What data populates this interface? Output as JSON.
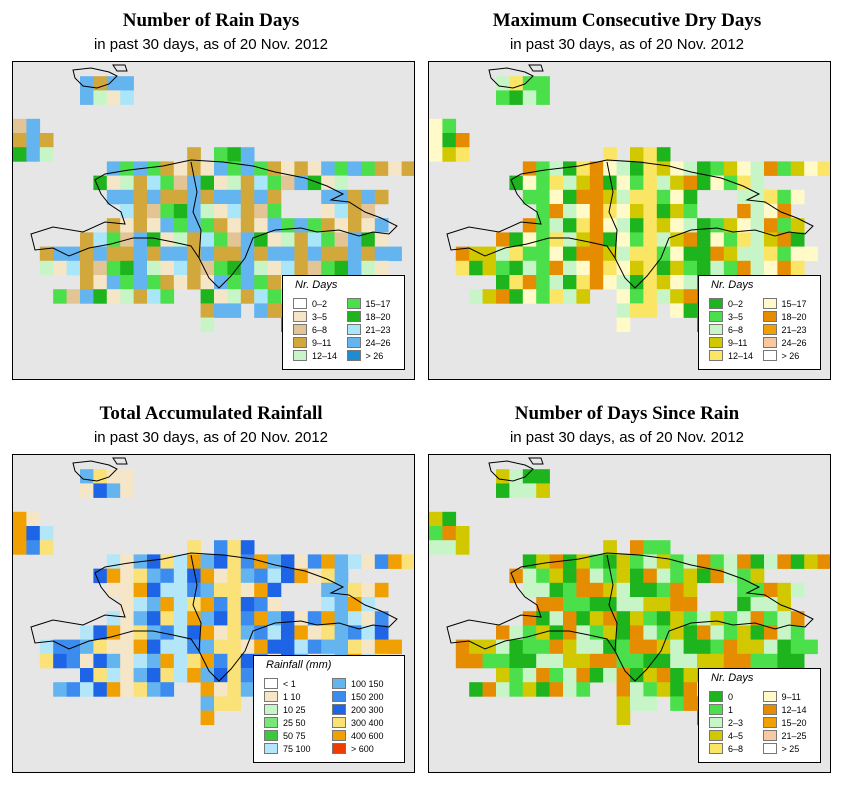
{
  "panels": [
    {
      "id": "rain-days",
      "title": "Number of Rain Days",
      "subtitle": "in past 30 days, as of  20 Nov. 2012",
      "legend": {
        "title": "Nr. Days",
        "cols": 2,
        "items": [
          {
            "label": "0–2",
            "color": "#ffffff"
          },
          {
            "label": "3–5",
            "color": "#f5e6c8"
          },
          {
            "label": "6–8",
            "color": "#e3c595"
          },
          {
            "label": "9–11",
            "color": "#d2a83c"
          },
          {
            "label": "12–14",
            "color": "#c8f5c8"
          },
          {
            "label": "15–17",
            "color": "#4be04b"
          },
          {
            "label": "18–20",
            "color": "#1eb41e"
          },
          {
            "label": "21–23",
            "color": "#aae6fa"
          },
          {
            "label": "24–26",
            "color": "#64b4f0"
          },
          {
            "label": "> 26",
            "color": "#1e8cd2"
          }
        ]
      },
      "palette": [
        "#c8f5c8",
        "#4be04b",
        "#1eb41e",
        "#d2a83c",
        "#e3c595",
        "#f5e6c8",
        "#aae6fa",
        "#64b4f0"
      ]
    },
    {
      "id": "dry-days",
      "title": "Maximum Consecutive Dry Days",
      "subtitle": "in past 30 days, as of  20 Nov. 2012",
      "legend": {
        "title": "Nr. Days",
        "cols": 2,
        "items": [
          {
            "label": "0–2",
            "color": "#1eb41e"
          },
          {
            "label": "3–5",
            "color": "#4be04b"
          },
          {
            "label": "6–8",
            "color": "#c8f5c8"
          },
          {
            "label": "9–11",
            "color": "#d2c800"
          },
          {
            "label": "12–14",
            "color": "#fae664"
          },
          {
            "label": "15–17",
            "color": "#fffac8"
          },
          {
            "label": "18–20",
            "color": "#e68c00"
          },
          {
            "label": "21–23",
            "color": "#f0a000"
          },
          {
            "label": "24–26",
            "color": "#fac8a0"
          },
          {
            "label": "> 26",
            "color": "#ffffff"
          }
        ]
      },
      "palette": [
        "#c8f5c8",
        "#4be04b",
        "#1eb41e",
        "#d2c800",
        "#fae664",
        "#fffac8",
        "#e68c00"
      ]
    },
    {
      "id": "rainfall",
      "title": "Total Accumulated Rainfall",
      "subtitle": "in past 30 days, as of  20 Nov. 2012",
      "legend": {
        "title": "Rainfall (mm)",
        "cols": 2,
        "items": [
          {
            "label": "< 1",
            "color": "#ffffff"
          },
          {
            "label": "1   10",
            "color": "#f5e6c8"
          },
          {
            "label": "10   25",
            "color": "#c8f5c8"
          },
          {
            "label": "25   50",
            "color": "#78e678"
          },
          {
            "label": "50   75",
            "color": "#3cc83c"
          },
          {
            "label": "75   100",
            "color": "#b4e6fa"
          },
          {
            "label": "100   150",
            "color": "#64b4f0"
          },
          {
            "label": "150   200",
            "color": "#3c8cf0"
          },
          {
            "label": "200   300",
            "color": "#1e64e6"
          },
          {
            "label": "300   400",
            "color": "#fae178"
          },
          {
            "label": "400   600",
            "color": "#f0a000"
          },
          {
            "label": "> 600",
            "color": "#f03c00"
          }
        ]
      },
      "palette": [
        "#1e64e6",
        "#3c8cf0",
        "#fae178",
        "#f0a000",
        "#b4e6fa",
        "#64b4f0",
        "#f5e6c8"
      ]
    },
    {
      "id": "days-since-rain",
      "title": "Number of Days Since Rain",
      "subtitle": "in past 30 days, as of  20 Nov. 2012",
      "legend": {
        "title": "Nr. Days",
        "cols": 2,
        "items": [
          {
            "label": "0",
            "color": "#1eb41e"
          },
          {
            "label": "1",
            "color": "#4be04b"
          },
          {
            "label": "2–3",
            "color": "#c8f5c8"
          },
          {
            "label": "4–5",
            "color": "#d2c800"
          },
          {
            "label": "6–8",
            "color": "#fae664"
          },
          {
            "label": "9–11",
            "color": "#fffac8"
          },
          {
            "label": "12–14",
            "color": "#e68c00"
          },
          {
            "label": "15–20",
            "color": "#f0a000"
          },
          {
            "label": "21–25",
            "color": "#fac8a0"
          },
          {
            "label": "> 25",
            "color": "#ffffff"
          }
        ]
      },
      "palette": [
        "#4be04b",
        "#1eb41e",
        "#c8f5c8",
        "#d2c800",
        "#e68c00"
      ]
    }
  ]
}
